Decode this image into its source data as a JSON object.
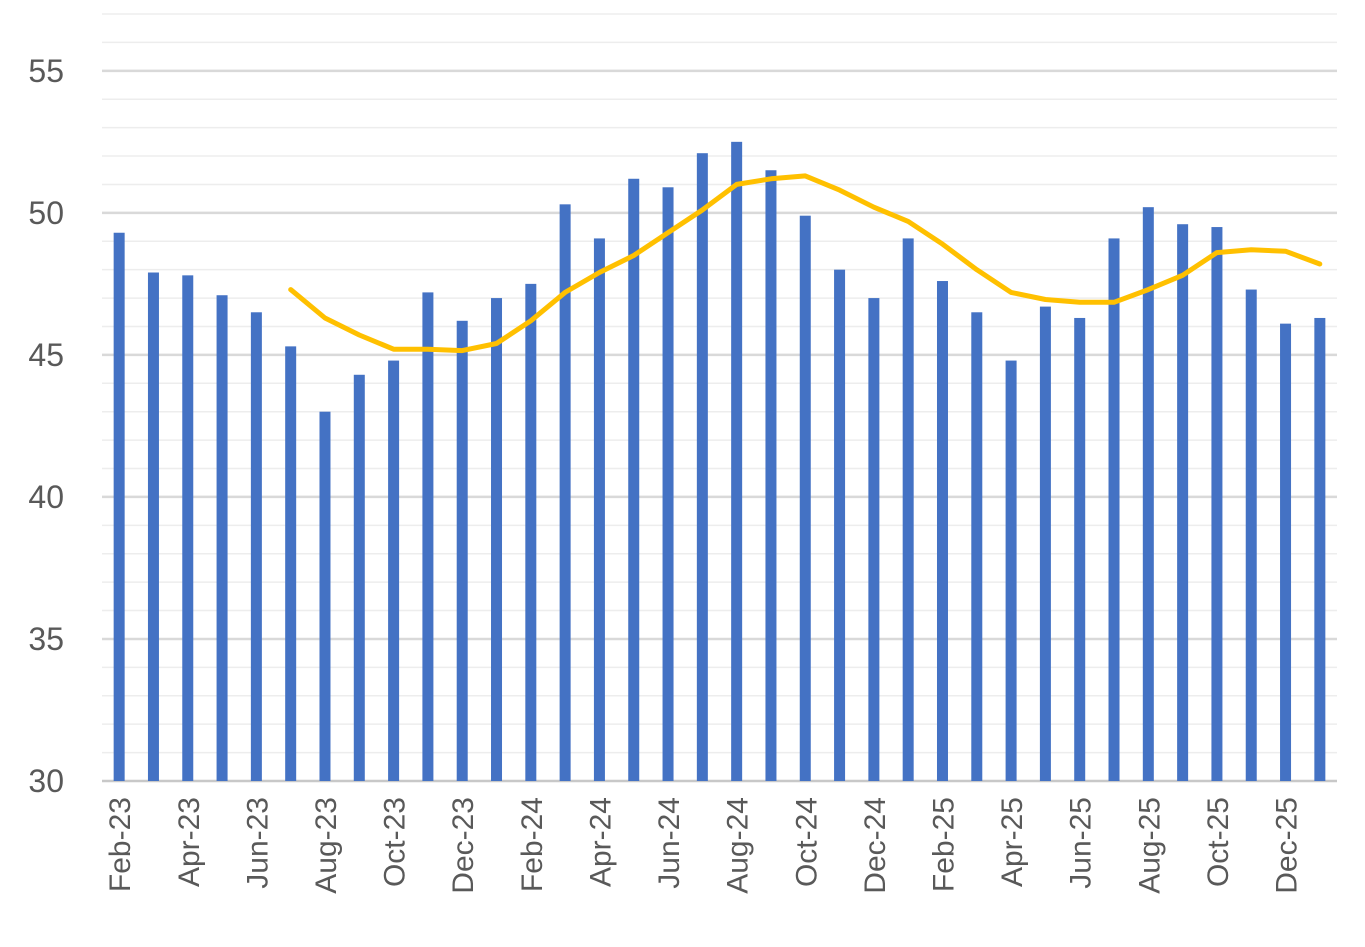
{
  "chart_data": {
    "type": "bar",
    "title": "",
    "xlabel": "",
    "ylabel": "",
    "ylim": [
      30,
      57
    ],
    "yticks": [
      30,
      35,
      40,
      45,
      50,
      55
    ],
    "grid": true,
    "categories": [
      "Feb-23",
      "Mar-23",
      "Apr-23",
      "May-23",
      "Jun-23",
      "Jul-23",
      "Aug-23",
      "Sep-23",
      "Oct-23",
      "Nov-23",
      "Dec-23",
      "Jan-24",
      "Feb-24",
      "Mar-24",
      "Apr-24",
      "May-24",
      "Jun-24",
      "Jul-24",
      "Aug-24",
      "Sep-24",
      "Oct-24",
      "Nov-24",
      "Dec-24",
      "Jan-25",
      "Feb-25",
      "Mar-25",
      "Apr-25",
      "May-25",
      "Jun-25",
      "Jul-25",
      "Aug-25",
      "Sep-25",
      "Oct-25",
      "Nov-25",
      "Dec-25",
      "Jan-26"
    ],
    "tick_labels_shown": [
      "Feb-23",
      "Apr-23",
      "Jun-23",
      "Aug-23",
      "Oct-23",
      "Dec-23",
      "Feb-24",
      "Apr-24",
      "Jun-24",
      "Aug-24",
      "Oct-24",
      "Dec-24",
      "Feb-25",
      "Apr-25",
      "Jun-25",
      "Aug-25",
      "Oct-25",
      "Dec-25"
    ],
    "series": [
      {
        "type": "bar",
        "color": "#4472C4",
        "values": [
          49.3,
          47.9,
          47.8,
          47.1,
          46.5,
          45.3,
          43.0,
          44.3,
          44.8,
          47.2,
          46.2,
          47.0,
          47.5,
          50.3,
          49.1,
          51.2,
          50.9,
          52.1,
          52.5,
          51.5,
          49.9,
          48.0,
          47.0,
          49.1,
          47.6,
          46.5,
          44.8,
          46.7,
          46.3,
          49.1,
          50.2,
          49.6,
          49.5,
          47.3,
          46.1,
          46.3
        ]
      },
      {
        "type": "line",
        "color": "#FFC000",
        "values": [
          null,
          null,
          null,
          null,
          null,
          47.3,
          46.3,
          45.7,
          45.2,
          45.2,
          45.15,
          45.4,
          46.2,
          47.2,
          47.9,
          48.5,
          49.3,
          50.1,
          51.0,
          51.2,
          51.3,
          50.8,
          50.2,
          49.7,
          48.9,
          48.0,
          47.2,
          46.95,
          46.85,
          46.85,
          47.3,
          47.8,
          48.6,
          48.7,
          48.65,
          48.2
        ]
      }
    ]
  }
}
